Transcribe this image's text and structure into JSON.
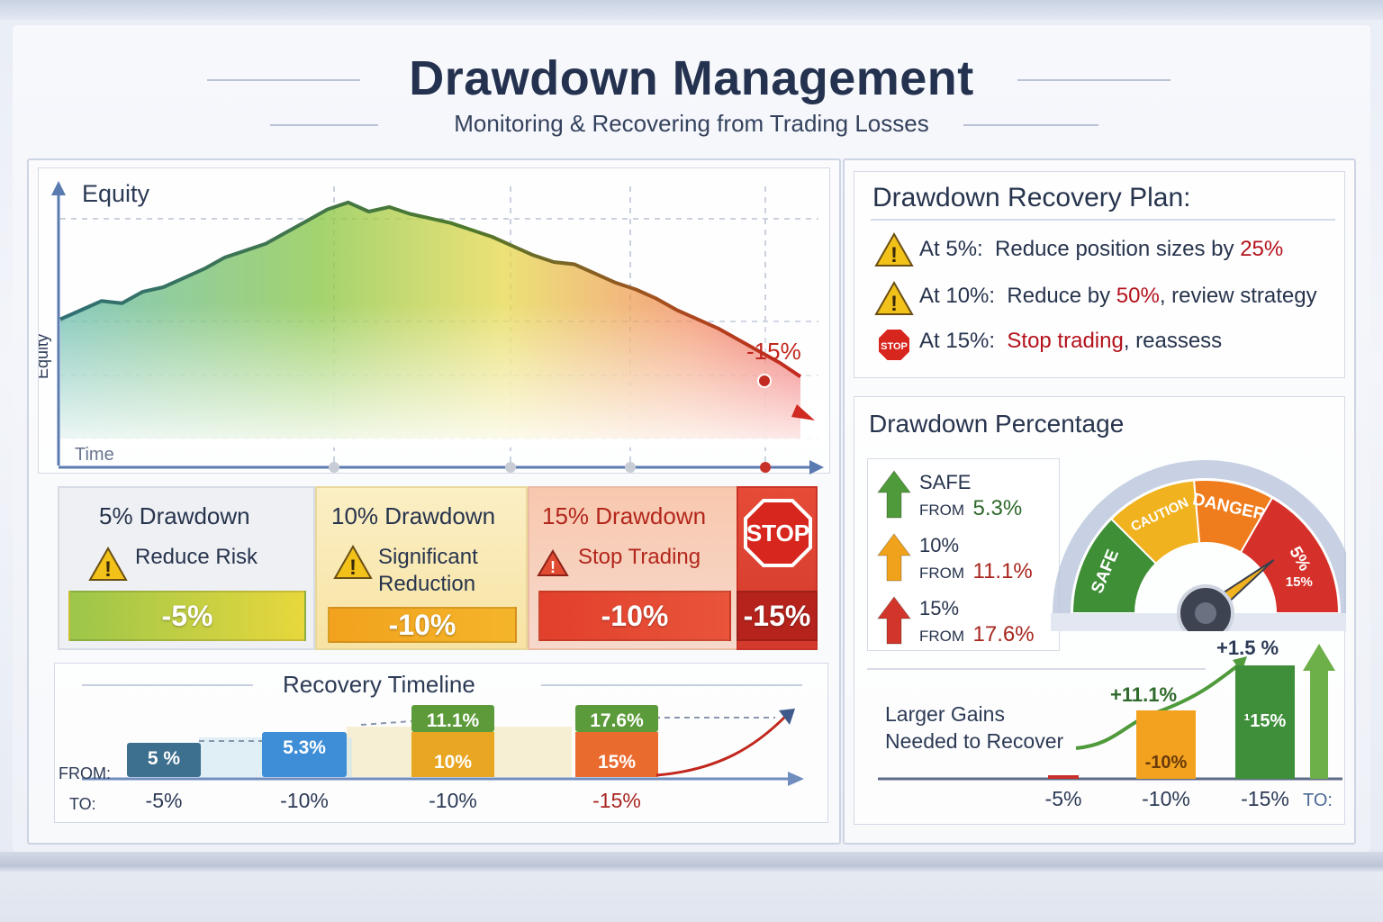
{
  "header": {
    "title": "Drawdown Management",
    "subtitle": "Monitoring & Recovering from Trading Losses"
  },
  "equity_chart": {
    "title": "Equity",
    "y_axis_label": "Equity",
    "x_axis_label": "Time",
    "marker_label": "-15%"
  },
  "drawdown_levels": [
    {
      "heading": "5% Drawdown",
      "note": "Reduce Risk",
      "bar": "-5%",
      "bar_color": "#9cc64a"
    },
    {
      "heading": "10% Drawdown",
      "note_line1": "Significant",
      "note_line2": "Reduction",
      "bar": "-10%",
      "bar_color": "#f2a21e"
    },
    {
      "heading": "15% Drawdown",
      "note": "Stop Trading",
      "bar": "-10%",
      "bar_extra": "-15%",
      "bar_color": "#e2402c",
      "stop_sign": "STOP"
    }
  ],
  "recovery_timeline": {
    "title": "Recovery Timeline",
    "from_label": "FROM:",
    "to_label": "TO:",
    "steps": [
      {
        "top": "5 %",
        "to": "-5%",
        "color": "#3d6f8e"
      },
      {
        "top": "5.3%",
        "to": "-10%",
        "color": "#3d8ed6"
      },
      {
        "top": "11.1%",
        "mid": "10%",
        "to": "-10%",
        "color": "#5d9b3a",
        "mid_color": "#e9a622"
      },
      {
        "top": "17.6%",
        "mid": "15%",
        "to": "-15%",
        "color": "#5b9b3b",
        "mid_color": "#ea6b2e"
      }
    ]
  },
  "recovery_plan": {
    "title": "Drawdown Recovery Plan:",
    "items": [
      {
        "prefix": "At 5%:",
        "text": "Reduce position sizes by ",
        "highlight": "25%",
        "suffix": "",
        "icon": "warning-icon"
      },
      {
        "prefix": "At 10%:",
        "text": "Reduce by ",
        "highlight": "50%",
        "suffix": ", review strategy",
        "icon": "warning-icon"
      },
      {
        "prefix": "At 15%:",
        "text": "",
        "highlight": "Stop trading",
        "suffix": ", reassess",
        "icon": "stop-sign-icon",
        "icon_text": "STOP"
      }
    ]
  },
  "drawdown_percentage": {
    "title": "Drawdown Percentage",
    "rows": [
      {
        "label": "SAFE",
        "from": "FROM",
        "value": "5.3%",
        "arrow_color": "#4f9a3a"
      },
      {
        "label": "10%",
        "from": "FROM",
        "value": "11.1%",
        "arrow_color": "#f0a21c"
      },
      {
        "label": "15%",
        "from": "FROM",
        "value": "17.6%",
        "arrow_color": "#d2362a"
      }
    ],
    "gauge": {
      "zones": [
        "SAFE",
        "CAUTION",
        "DANGER",
        "5%"
      ],
      "zone_colors": [
        "#3f8f37",
        "#f0b21f",
        "#ef7d1d",
        "#d6302a"
      ],
      "extra_label": "15%"
    }
  },
  "gains_chart": {
    "caption_line1": "Larger Gains",
    "caption_line2": "Needed to Recover",
    "to_label": "TO:",
    "categories": [
      "-5%",
      "-10%",
      "-15%"
    ],
    "bar_labels": [
      "",
      "-10%",
      "¹15%"
    ],
    "gain_labels": [
      "+1.5 %",
      "+11.1%"
    ],
    "colors": [
      "#c9302c",
      "#f2a21e",
      "#3f8f3a"
    ]
  },
  "chart_data": {
    "type": "line",
    "title": "Equity",
    "xlabel": "Time",
    "ylabel": "Equity",
    "annotations": [
      "-15%"
    ],
    "series": [
      {
        "values": [
          52,
          56,
          60,
          59,
          64,
          66,
          70,
          74,
          79,
          82,
          85,
          90,
          95,
          100,
          103,
          99,
          101,
          98,
          96,
          94,
          91,
          88,
          84,
          80,
          77,
          76,
          72,
          68,
          65,
          61,
          56,
          52,
          48,
          43,
          38,
          33,
          27
        ]
      }
    ]
  }
}
